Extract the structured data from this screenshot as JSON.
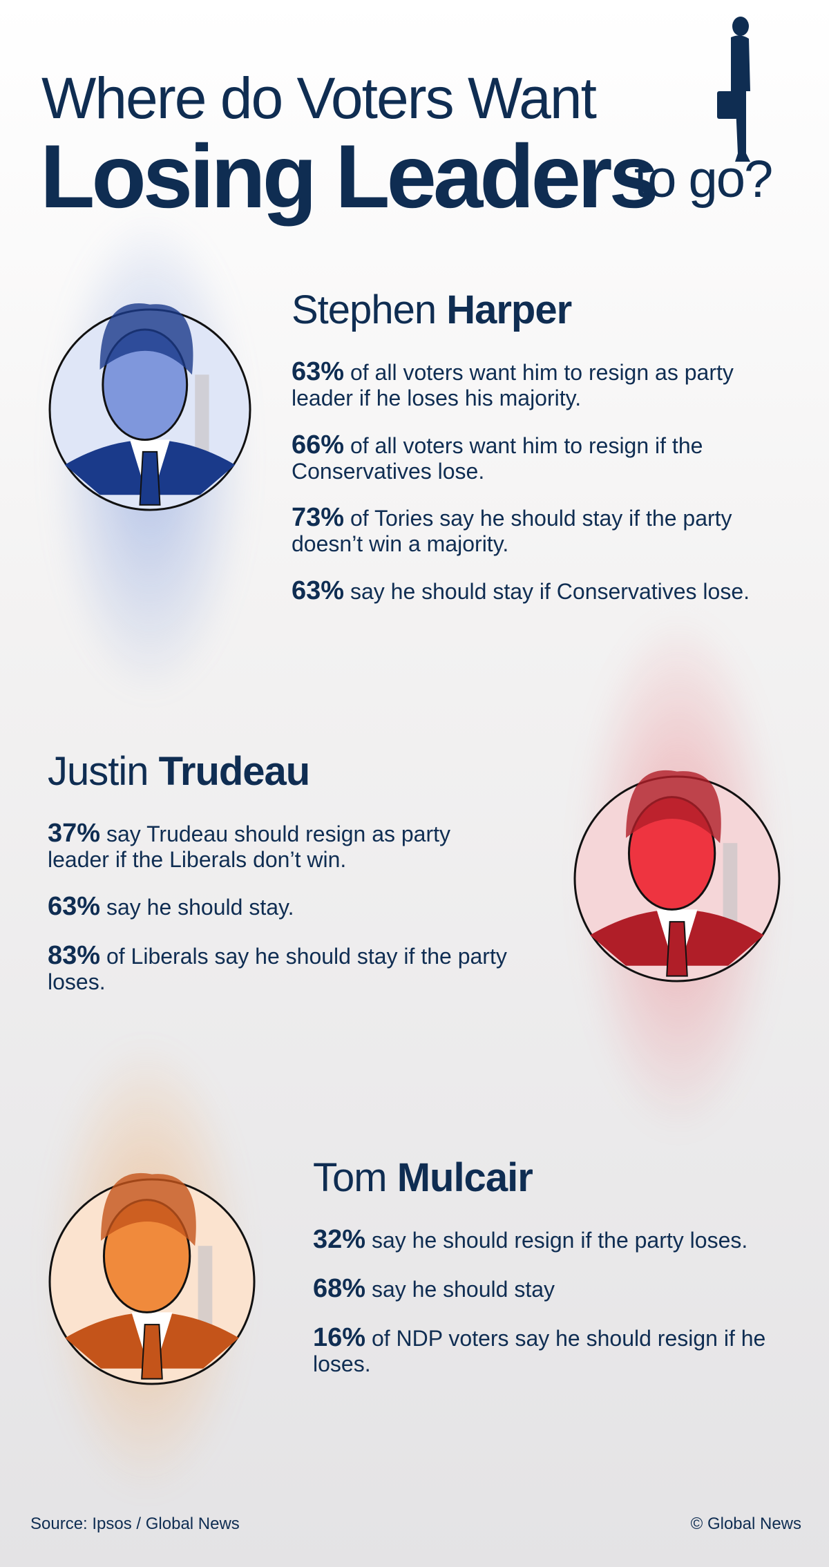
{
  "header": {
    "title_line1": "Where do Voters Want",
    "title_emphasis": "Losing Leaders",
    "title_end": "to go?"
  },
  "leaders": [
    {
      "first_name": "Stephen",
      "last_name": "Harper",
      "stats": [
        {
          "percent": "63%",
          "text": "of all voters want him to resign as party leader if he loses his majority."
        },
        {
          "percent": "66%",
          "text": "of all voters want him to resign if the Conservatives lose."
        },
        {
          "percent": "73%",
          "text": "of Tories say he should stay if the party doesn’t win a majority."
        },
        {
          "percent": "63%",
          "text": "say he should stay if Conservatives lose."
        }
      ]
    },
    {
      "first_name": "Justin",
      "last_name": "Trudeau",
      "stats": [
        {
          "percent": "37%",
          "text": "say Trudeau should resign as party leader if the Liberals don’t win."
        },
        {
          "percent": "63%",
          "text": "say he should stay."
        },
        {
          "percent": "83%",
          "text": "of Liberals say he should stay if the party loses."
        }
      ]
    },
    {
      "first_name": "Tom",
      "last_name": "Mulcair",
      "stats": [
        {
          "percent": "32%",
          "text": "say he should resign if the party loses."
        },
        {
          "percent": "68%",
          "text": "say he should stay"
        },
        {
          "percent": "16%",
          "text": "of NDP voters say he should resign if he loses."
        }
      ]
    }
  ],
  "footer": {
    "source": "Source: Ipsos / Global News",
    "credit": "© Global News"
  }
}
